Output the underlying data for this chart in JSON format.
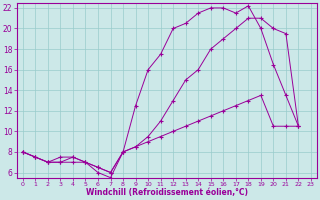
{
  "xlabel": "Windchill (Refroidissement éolien,°C)",
  "bg_color": "#cce8e8",
  "line_color": "#990099",
  "grid_color": "#99cccc",
  "xlim": [
    -0.5,
    23.5
  ],
  "ylim": [
    5.5,
    22.5
  ],
  "xticks": [
    0,
    1,
    2,
    3,
    4,
    5,
    6,
    7,
    8,
    9,
    10,
    11,
    12,
    13,
    14,
    15,
    16,
    17,
    18,
    19,
    20,
    21,
    22,
    23
  ],
  "yticks": [
    6,
    8,
    10,
    12,
    14,
    16,
    18,
    20,
    22
  ],
  "line1_x": [
    0,
    1,
    2,
    3,
    4,
    5,
    6,
    7,
    8,
    9,
    10,
    11,
    12,
    13,
    14,
    15,
    16,
    17,
    18,
    19,
    20,
    21,
    22
  ],
  "line1_y": [
    8,
    7.5,
    7,
    7.5,
    7.5,
    7,
    6,
    5.5,
    8,
    12.5,
    16,
    17.5,
    20,
    20.5,
    21.5,
    22,
    22,
    21.5,
    22.2,
    20,
    16.5,
    13.5,
    10.5
  ],
  "line2_x": [
    0,
    1,
    2,
    3,
    4,
    5,
    6,
    7,
    8,
    9,
    10,
    11,
    12,
    13,
    14,
    15,
    16,
    17,
    18,
    19,
    20,
    21,
    22
  ],
  "line2_y": [
    8,
    7.5,
    7,
    7,
    7.5,
    7,
    6.5,
    6,
    8,
    8.5,
    9.5,
    11,
    13,
    15,
    16,
    18,
    19,
    20,
    21,
    21,
    20,
    19.5,
    10.5
  ],
  "line3_x": [
    0,
    1,
    2,
    3,
    4,
    5,
    6,
    7,
    8,
    9,
    10,
    11,
    12,
    13,
    14,
    15,
    16,
    17,
    18,
    19,
    20,
    21,
    22
  ],
  "line3_y": [
    8,
    7.5,
    7,
    7,
    7,
    7,
    6.5,
    6,
    8,
    8.5,
    9,
    9.5,
    10,
    10.5,
    11,
    11.5,
    12,
    12.5,
    13,
    13.5,
    10.5,
    10.5,
    10.5
  ]
}
